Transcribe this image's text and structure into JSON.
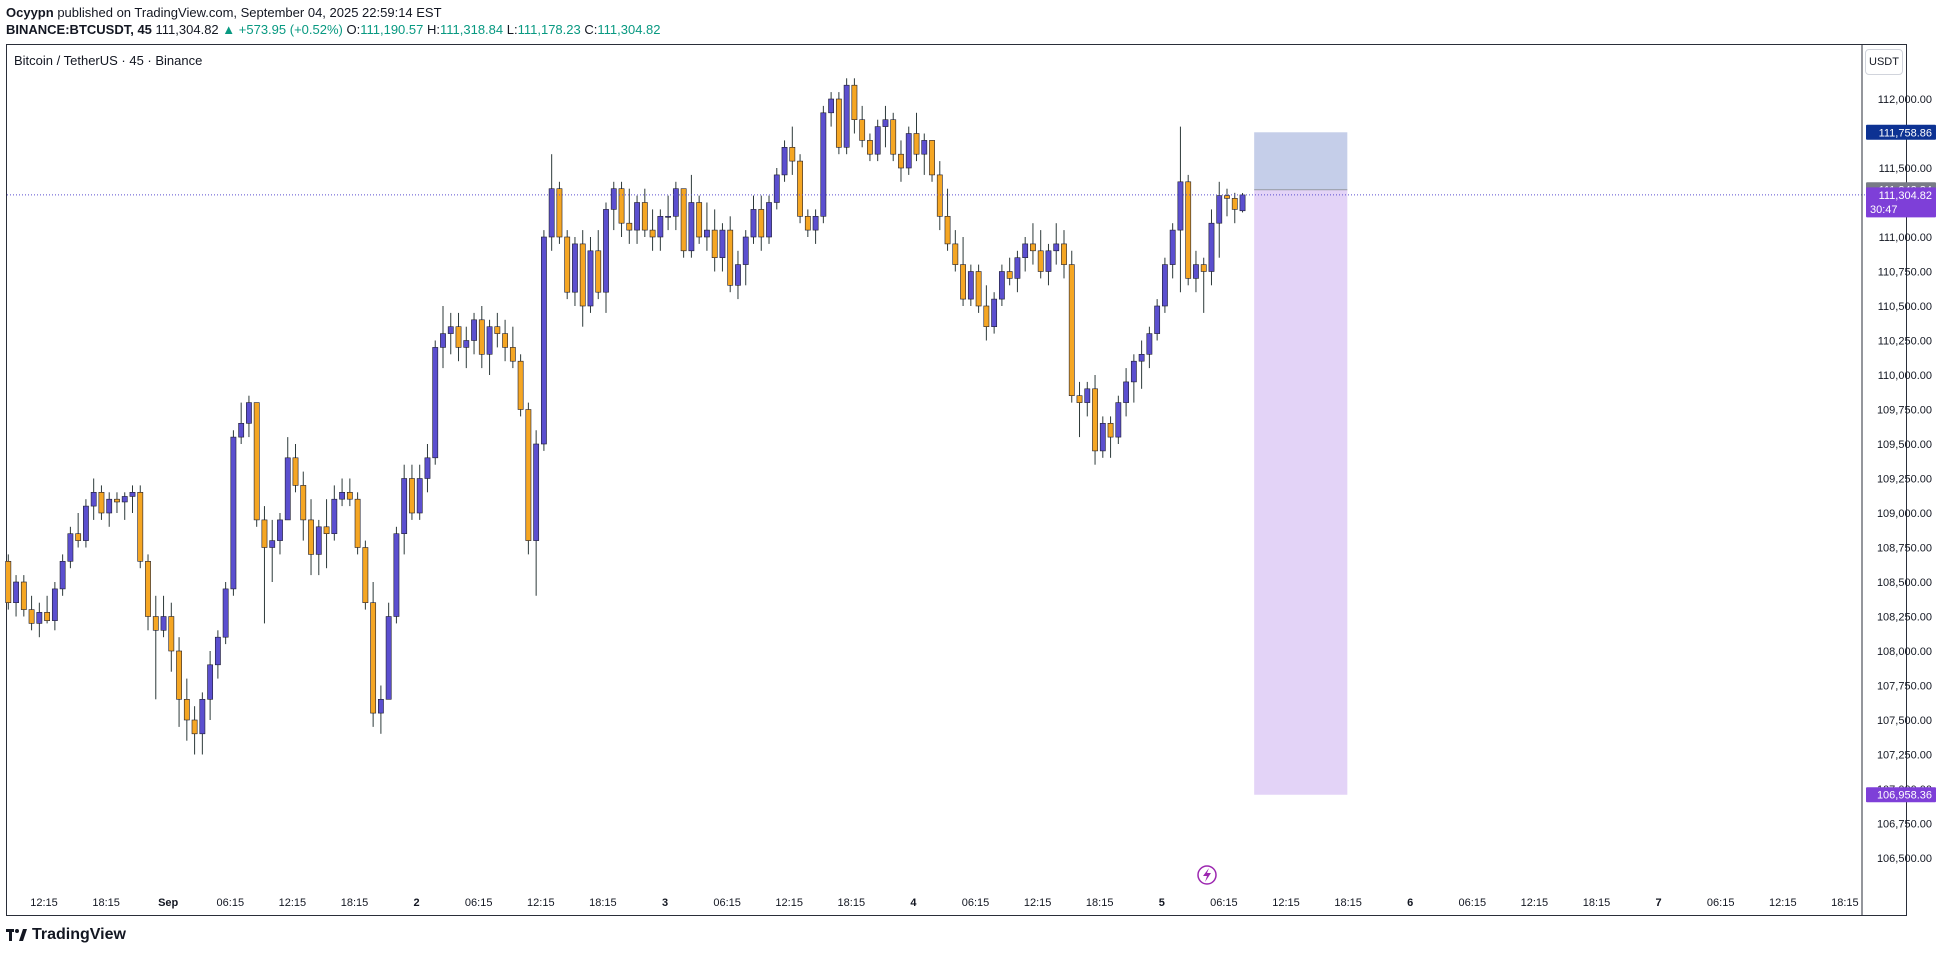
{
  "header": {
    "author": "Ocyypn",
    "published_text": "published on TradingView.com, September 04, 2025 22:59:14 EST",
    "symbol": "BINANCE:BTCUSDT, 45",
    "last": "111,304.82",
    "change": "▲ +573.95 (+0.52%)",
    "open_label": "O:",
    "open": "111,190.57",
    "high_label": "H:",
    "high": "111,318.84",
    "low_label": "L:",
    "low": "111,178.23",
    "close_label": "C:",
    "close": "111,304.82"
  },
  "chart_title": "Bitcoin / TetherUS · 45 · Binance",
  "footer": {
    "brand": "TradingView",
    "logo_icon": "tradingview-logo-icon"
  },
  "colors": {
    "up_body": "#5b4fcf",
    "down_body": "#f5a623",
    "wick": "#2d3a3a",
    "price_line": "#5b4fcf",
    "target_zone": "#c5cee9",
    "stop_zone": "#e3d3f7",
    "label_blue": "#0d3293",
    "label_purple": "#7e3fd8",
    "label_gray": "#787b86"
  },
  "chart_data": {
    "type": "candlestick",
    "y_unit": "USDT",
    "ylim": [
      106250,
      112400
    ],
    "y_ticks": [
      "112,000.00",
      "111,500.00",
      "111,000.00",
      "110,750.00",
      "110,500.00",
      "110,250.00",
      "110,000.00",
      "109,750.00",
      "109,500.00",
      "109,250.00",
      "109,000.00",
      "108,750.00",
      "108,500.00",
      "108,250.00",
      "108,000.00",
      "107,750.00",
      "107,500.00",
      "107,250.00",
      "107,000.00",
      "106,750.00",
      "106,500.00"
    ],
    "y_tick_values": [
      112000,
      111500,
      111000,
      110750,
      110500,
      110250,
      110000,
      109750,
      109500,
      109250,
      109000,
      108750,
      108500,
      108250,
      108000,
      107750,
      107500,
      107250,
      107000,
      106750,
      106500
    ],
    "x_ticks": [
      "12:15",
      "18:15",
      "Sep",
      "06:15",
      "12:15",
      "18:15",
      "2",
      "06:15",
      "12:15",
      "18:15",
      "3",
      "06:15",
      "12:15",
      "18:15",
      "4",
      "06:15",
      "12:15",
      "18:15",
      "5",
      "06:15",
      "12:15",
      "18:15",
      "6",
      "06:15",
      "12:15",
      "18:15",
      "7",
      "06:15",
      "12:15",
      "18:15"
    ],
    "bar_interval_minutes": 45,
    "bars_per_x_tick": 8,
    "first_bar_offset": -7.6,
    "candles": [
      [
        108700,
        108900,
        108650,
        108880
      ],
      [
        108880,
        109050,
        108800,
        108950
      ],
      [
        108950,
        109000,
        108600,
        108650
      ],
      [
        108650,
        108700,
        108300,
        108350
      ],
      [
        108350,
        108550,
        108250,
        108500
      ],
      [
        108500,
        108550,
        108250,
        108300
      ],
      [
        108300,
        108400,
        108150,
        108200
      ],
      [
        108200,
        108350,
        108100,
        108280
      ],
      [
        108280,
        108400,
        108200,
        108220
      ],
      [
        108220,
        108500,
        108150,
        108450
      ],
      [
        108450,
        108700,
        108400,
        108650
      ],
      [
        108650,
        108900,
        108600,
        108850
      ],
      [
        108850,
        109000,
        108750,
        108800
      ],
      [
        108800,
        109100,
        108750,
        109050
      ],
      [
        109050,
        109250,
        108950,
        109150
      ],
      [
        109150,
        109200,
        108950,
        109000
      ],
      [
        109000,
        109150,
        108900,
        109100
      ],
      [
        109100,
        109150,
        109000,
        109080
      ],
      [
        109080,
        109150,
        108950,
        109120
      ],
      [
        109120,
        109200,
        109000,
        109150
      ],
      [
        109150,
        109200,
        108600,
        108650
      ],
      [
        108650,
        108700,
        108150,
        108250
      ],
      [
        108250,
        108400,
        107650,
        108150
      ],
      [
        108150,
        108400,
        108100,
        108250
      ],
      [
        108250,
        108350,
        107850,
        108000
      ],
      [
        108000,
        108100,
        107450,
        107650
      ],
      [
        107650,
        107800,
        107350,
        107500
      ],
      [
        107500,
        107600,
        107250,
        107400
      ],
      [
        107400,
        107700,
        107250,
        107650
      ],
      [
        107650,
        108000,
        107500,
        107900
      ],
      [
        107900,
        108150,
        107800,
        108100
      ],
      [
        108100,
        108500,
        108050,
        108450
      ],
      [
        108450,
        109600,
        108400,
        109550
      ],
      [
        109550,
        109800,
        109500,
        109650
      ],
      [
        109650,
        109850,
        109550,
        109800
      ],
      [
        109800,
        109800,
        108900,
        108950
      ],
      [
        108950,
        109050,
        108200,
        108750
      ],
      [
        108750,
        108950,
        108500,
        108800
      ],
      [
        108800,
        109000,
        108700,
        108950
      ],
      [
        108950,
        109550,
        108950,
        109400
      ],
      [
        109400,
        109500,
        109150,
        109200
      ],
      [
        109200,
        109300,
        108800,
        108950
      ],
      [
        108950,
        109100,
        108550,
        108700
      ],
      [
        108700,
        108950,
        108550,
        108900
      ],
      [
        108900,
        109100,
        108600,
        108850
      ],
      [
        108850,
        109200,
        108800,
        109100
      ],
      [
        109100,
        109250,
        109050,
        109150
      ],
      [
        109150,
        109250,
        109050,
        109100
      ],
      [
        109100,
        109150,
        108700,
        108750
      ],
      [
        108750,
        108800,
        108300,
        108350
      ],
      [
        108350,
        108500,
        107450,
        107550
      ],
      [
        107550,
        107750,
        107400,
        107650
      ],
      [
        107650,
        108350,
        107650,
        108250
      ],
      [
        108250,
        108900,
        108200,
        108850
      ],
      [
        108850,
        109350,
        108700,
        109250
      ],
      [
        109250,
        109350,
        108950,
        109000
      ],
      [
        109000,
        109350,
        108950,
        109250
      ],
      [
        109250,
        109500,
        109150,
        109400
      ],
      [
        109400,
        110250,
        109350,
        110200
      ],
      [
        110200,
        110500,
        110050,
        110300
      ],
      [
        110300,
        110450,
        110150,
        110350
      ],
      [
        110350,
        110450,
        110100,
        110200
      ],
      [
        110200,
        110350,
        110050,
        110250
      ],
      [
        110250,
        110450,
        110150,
        110400
      ],
      [
        110400,
        110500,
        110050,
        110150
      ],
      [
        110150,
        110400,
        110000,
        110350
      ],
      [
        110350,
        110450,
        110200,
        110300
      ],
      [
        110300,
        110400,
        110100,
        110200
      ],
      [
        110200,
        110350,
        110050,
        110100
      ],
      [
        110100,
        110150,
        109700,
        109750
      ],
      [
        109750,
        109800,
        108700,
        108800
      ],
      [
        108800,
        109600,
        108400,
        109500
      ],
      [
        109500,
        111050,
        109450,
        111000
      ],
      [
        111000,
        111600,
        110900,
        111350
      ],
      [
        111350,
        111400,
        110950,
        111000
      ],
      [
        111000,
        111050,
        110550,
        110600
      ],
      [
        110600,
        111000,
        110500,
        110950
      ],
      [
        110950,
        111050,
        110350,
        110500
      ],
      [
        110500,
        111000,
        110450,
        110900
      ],
      [
        110900,
        111050,
        110550,
        110600
      ],
      [
        110600,
        111250,
        110450,
        111200
      ],
      [
        111200,
        111400,
        111050,
        111350
      ],
      [
        111350,
        111400,
        111000,
        111100
      ],
      [
        111100,
        111350,
        110950,
        111050
      ],
      [
        111050,
        111300,
        110950,
        111250
      ],
      [
        111250,
        111350,
        111000,
        111050
      ],
      [
        111050,
        111200,
        110900,
        111000
      ],
      [
        111000,
        111200,
        110900,
        111150
      ],
      [
        111150,
        111300,
        111050,
        111150
      ],
      [
        111150,
        111400,
        111050,
        111350
      ],
      [
        111350,
        111350,
        110850,
        110900
      ],
      [
        110900,
        111450,
        110850,
        111250
      ],
      [
        111250,
        111300,
        110950,
        111000
      ],
      [
        111000,
        111250,
        110900,
        111050
      ],
      [
        111050,
        111200,
        110750,
        110850
      ],
      [
        110850,
        111100,
        110750,
        111050
      ],
      [
        111050,
        111150,
        110600,
        110650
      ],
      [
        110650,
        110900,
        110550,
        110800
      ],
      [
        110800,
        111050,
        110650,
        111000
      ],
      [
        111000,
        111300,
        110950,
        111200
      ],
      [
        111200,
        111300,
        110900,
        111000
      ],
      [
        111000,
        111300,
        110950,
        111250
      ],
      [
        111250,
        111500,
        111200,
        111450
      ],
      [
        111450,
        111700,
        111400,
        111650
      ],
      [
        111650,
        111800,
        111450,
        111550
      ],
      [
        111550,
        111600,
        111100,
        111150
      ],
      [
        111150,
        111200,
        111000,
        111050
      ],
      [
        111050,
        111200,
        110950,
        111150
      ],
      [
        111150,
        111950,
        111100,
        111900
      ],
      [
        111900,
        112050,
        111800,
        112000
      ],
      [
        112000,
        112050,
        111600,
        111650
      ],
      [
        111650,
        112150,
        111600,
        112100
      ],
      [
        112100,
        112150,
        111750,
        111850
      ],
      [
        111850,
        111950,
        111650,
        111700
      ],
      [
        111700,
        111750,
        111550,
        111600
      ],
      [
        111600,
        111850,
        111550,
        111800
      ],
      [
        111800,
        111950,
        111650,
        111850
      ],
      [
        111850,
        111900,
        111550,
        111600
      ],
      [
        111600,
        111700,
        111400,
        111500
      ],
      [
        111500,
        111800,
        111450,
        111750
      ],
      [
        111750,
        111900,
        111550,
        111600
      ],
      [
        111600,
        111750,
        111450,
        111700
      ],
      [
        111700,
        111700,
        111400,
        111450
      ],
      [
        111450,
        111550,
        111050,
        111150
      ],
      [
        111150,
        111350,
        110900,
        110950
      ],
      [
        110950,
        111050,
        110750,
        110800
      ],
      [
        110800,
        111000,
        110500,
        110550
      ],
      [
        110550,
        110800,
        110500,
        110750
      ],
      [
        110750,
        110800,
        110450,
        110500
      ],
      [
        110500,
        110650,
        110250,
        110350
      ],
      [
        110350,
        110600,
        110300,
        110550
      ],
      [
        110550,
        110800,
        110500,
        110750
      ],
      [
        110750,
        110850,
        110650,
        110700
      ],
      [
        110700,
        110900,
        110600,
        110850
      ],
      [
        110850,
        111000,
        110750,
        110950
      ],
      [
        110950,
        111100,
        110800,
        110900
      ],
      [
        110900,
        111050,
        110700,
        110750
      ],
      [
        110750,
        110950,
        110650,
        110900
      ],
      [
        110900,
        111100,
        110800,
        110950
      ],
      [
        110950,
        111050,
        110700,
        110800
      ],
      [
        110800,
        110900,
        109800,
        109850
      ],
      [
        109850,
        109950,
        109550,
        109800
      ],
      [
        109800,
        109950,
        109700,
        109900
      ],
      [
        109900,
        110000,
        109350,
        109450
      ],
      [
        109450,
        109700,
        109400,
        109650
      ],
      [
        109650,
        109700,
        109400,
        109550
      ],
      [
        109550,
        109850,
        109500,
        109800
      ],
      [
        109800,
        110050,
        109700,
        109950
      ],
      [
        109950,
        110150,
        109800,
        110100
      ],
      [
        110100,
        110250,
        109900,
        110150
      ],
      [
        110150,
        110350,
        110050,
        110300
      ],
      [
        110300,
        110550,
        110250,
        110500
      ],
      [
        110500,
        110850,
        110450,
        110800
      ],
      [
        110800,
        111100,
        110700,
        111050
      ],
      [
        111050,
        111800,
        110600,
        111400
      ],
      [
        111400,
        111450,
        110650,
        110700
      ],
      [
        110700,
        110900,
        110600,
        110800
      ],
      [
        110800,
        110850,
        110450,
        110750
      ],
      [
        110750,
        111200,
        110650,
        111100
      ],
      [
        111100,
        111400,
        110850,
        111300
      ],
      [
        111300,
        111350,
        111150,
        111280
      ],
      [
        111280,
        111320,
        111100,
        111200
      ],
      [
        111190,
        111319,
        111178,
        111305
      ]
    ],
    "last_price": 111304.82,
    "last_price_label": "111,304.82",
    "countdown": "30:47",
    "target_price": 111758.86,
    "target_label": "111,758.86",
    "entry_price": 111342.84,
    "entry_label": "111,342.84",
    "stop_price": 106958.36,
    "stop_label": "106,958.36",
    "position_start_bar": 164,
    "position_end_bar": 175,
    "grid": false
  }
}
